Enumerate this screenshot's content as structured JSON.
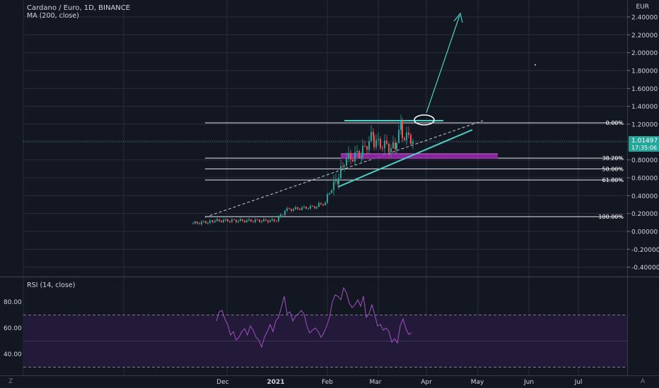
{
  "header": {
    "symbol_line": "Cardano / Euro, 1D, BINANCE",
    "indicator_line": "MA (200, close)"
  },
  "rsi": {
    "label": "RSI (14, close)",
    "ticks": [
      "80.00",
      "60.00",
      "40.00"
    ],
    "upper_band": 70,
    "lower_band": 30
  },
  "price_axis": {
    "currency": "EUR",
    "ticks": [
      "2.40000",
      "2.20000",
      "2.00000",
      "1.80000",
      "1.60000",
      "1.40000",
      "1.20000",
      "0.80000",
      "0.60000",
      "0.40000",
      "0.20000",
      "0.00000",
      "-0.20000",
      "-0.40000"
    ],
    "current_price": "1.01497",
    "countdown": "17:35:06"
  },
  "time_axis": {
    "ticks": [
      "Dec",
      "2021",
      "Feb",
      "Mar",
      "Apr",
      "May",
      "Jun",
      "Jul"
    ]
  },
  "fib_levels": [
    {
      "label": "0.00%",
      "price": 1.215
    },
    {
      "label": "38.20%",
      "price": 0.82
    },
    {
      "label": "50.00%",
      "price": 0.7
    },
    {
      "label": "61.80%",
      "price": 0.575
    },
    {
      "label": "100.00%",
      "price": 0.165
    }
  ],
  "corner": {
    "left": "Z",
    "right": "A"
  },
  "colors": {
    "background": "#131722",
    "grid": "#2a2e39",
    "candle_up": "#26a69a",
    "candle_down": "#ef5350",
    "trendline": "#4dd0c4",
    "zone": "#9c27b0",
    "rsi_line": "#a64fc9",
    "rsi_band_fill": "#221a38",
    "price_label": "#26a69a"
  },
  "chart_data": {
    "type": "line",
    "x": [
      "Nov 14",
      "Nov 24",
      "Dec 4",
      "Dec 14",
      "Dec 24",
      "Jan 3",
      "Jan 13",
      "Jan 20",
      "Jan 27",
      "Feb 3",
      "Feb 8",
      "Feb 13",
      "Feb 20",
      "Feb 27",
      "Mar 3",
      "Mar 9",
      "Mar 15",
      "Mar 19",
      "Mar 23"
    ],
    "series": [
      {
        "values": [
          0.07,
          0.09,
          0.12,
          0.11,
          0.1,
          0.12,
          0.16,
          0.28,
          0.27,
          0.3,
          0.55,
          0.75,
          0.9,
          1.05,
          0.88,
          0.92,
          1.05,
          1.1,
          1.01
        ]
      }
    ],
    "ylim": [
      -0.45,
      2.45
    ]
  }
}
